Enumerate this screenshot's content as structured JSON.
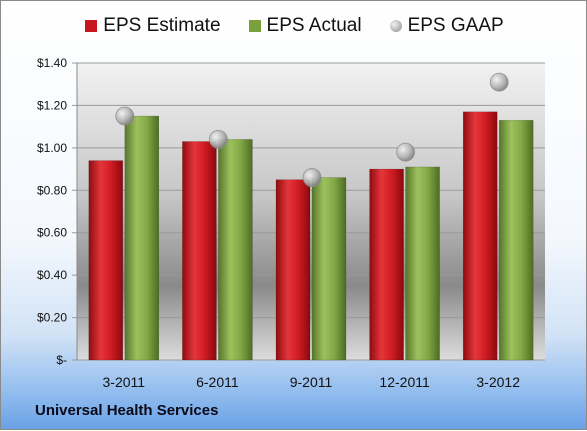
{
  "chart_data": {
    "type": "bar",
    "categories": [
      "3-2011",
      "6-2011",
      "9-2011",
      "12-2011",
      "3-2012"
    ],
    "series": [
      {
        "name": "EPS Estimate",
        "kind": "bar",
        "color": "#c8161d",
        "values": [
          0.94,
          1.03,
          0.85,
          0.9,
          1.17
        ]
      },
      {
        "name": "EPS Actual",
        "kind": "bar",
        "color": "#7aa03c",
        "values": [
          1.15,
          1.04,
          0.86,
          0.91,
          1.13
        ]
      },
      {
        "name": "EPS GAAP",
        "kind": "marker",
        "color": "#a9a9a9",
        "values": [
          1.15,
          1.04,
          0.86,
          0.98,
          1.31
        ]
      }
    ],
    "yticks": [
      "$-",
      "$0.20",
      "$0.40",
      "$0.60",
      "$0.80",
      "$1.00",
      "$1.20",
      "$1.40"
    ],
    "ylim": [
      0,
      1.4
    ],
    "grid": true,
    "legend_position": "top"
  },
  "company_name": "Universal Health Services"
}
